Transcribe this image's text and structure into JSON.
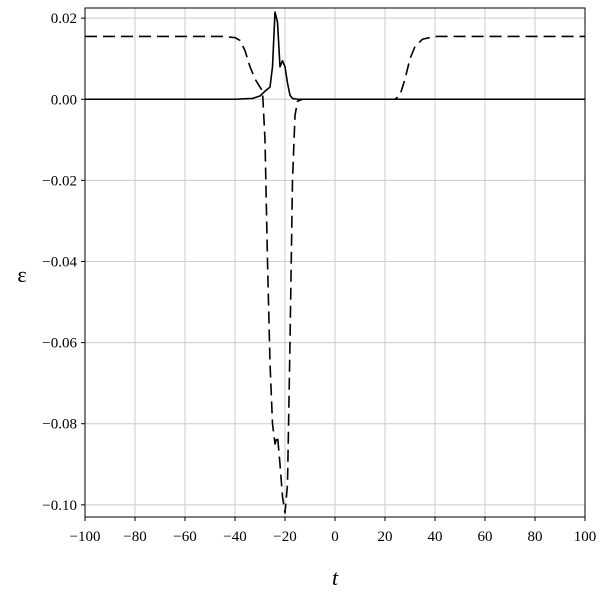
{
  "chart_data": {
    "type": "line",
    "title": "",
    "xlabel": "t",
    "ylabel": "ε",
    "xlim": [
      -100,
      100
    ],
    "ylim": [
      -0.103,
      0.0225
    ],
    "grid": true,
    "legend": "none",
    "x_ticks": [
      -100,
      -80,
      -60,
      -40,
      -20,
      0,
      20,
      40,
      60,
      80,
      100
    ],
    "x_tick_labels": [
      "−100",
      "−80",
      "−60",
      "−40",
      "−20",
      "0",
      "20",
      "40",
      "60",
      "80",
      "100"
    ],
    "y_ticks": [
      0.02,
      0.0,
      -0.02,
      -0.04,
      -0.06,
      -0.08,
      -0.1
    ],
    "y_tick_labels": [
      "0.02",
      "0.00",
      "−0.02",
      "−0.04",
      "−0.06",
      "−0.08",
      "−0.10"
    ],
    "colors": {
      "line": "#000000",
      "grid": "#cccccc",
      "frame": "#000000"
    },
    "series": [
      {
        "style": "solid",
        "points": [
          [
            -100,
            0
          ],
          [
            -40,
            0
          ],
          [
            -33,
            0.0002
          ],
          [
            -30,
            0.0008
          ],
          [
            -28,
            0.002
          ],
          [
            -27,
            0.0025
          ],
          [
            -26,
            0.003
          ],
          [
            -25,
            0.008
          ],
          [
            -24,
            0.0215
          ],
          [
            -23,
            0.019
          ],
          [
            -22,
            0.008
          ],
          [
            -21,
            0.0095
          ],
          [
            -20,
            0.008
          ],
          [
            -19,
            0.004
          ],
          [
            -18,
            0.001
          ],
          [
            -17,
            0.0002
          ],
          [
            -15,
            0
          ],
          [
            100,
            0
          ]
        ]
      },
      {
        "style": "dashed",
        "points": [
          [
            -100,
            0.0155
          ],
          [
            -45,
            0.0155
          ],
          [
            -40,
            0.0152
          ],
          [
            -38,
            0.0145
          ],
          [
            -36,
            0.012
          ],
          [
            -34,
            0.008
          ],
          [
            -32,
            0.005
          ],
          [
            -30,
            0.003
          ],
          [
            -29,
            0.002
          ],
          [
            -28,
            -0.01
          ],
          [
            -27,
            -0.04
          ],
          [
            -26,
            -0.065
          ],
          [
            -25,
            -0.08
          ],
          [
            -24,
            -0.085
          ],
          [
            -23,
            -0.083
          ],
          [
            -22,
            -0.09
          ],
          [
            -21,
            -0.098
          ],
          [
            -20,
            -0.102
          ],
          [
            -19,
            -0.095
          ],
          [
            -18,
            -0.06
          ],
          [
            -17,
            -0.02
          ],
          [
            -16,
            -0.004
          ],
          [
            -15,
            -0.0005
          ],
          [
            -13,
            0
          ],
          [
            24,
            0
          ],
          [
            26,
            0.001
          ],
          [
            28,
            0.005
          ],
          [
            30,
            0.01
          ],
          [
            32,
            0.013
          ],
          [
            35,
            0.0148
          ],
          [
            40,
            0.0155
          ],
          [
            100,
            0.0155
          ]
        ]
      }
    ]
  }
}
